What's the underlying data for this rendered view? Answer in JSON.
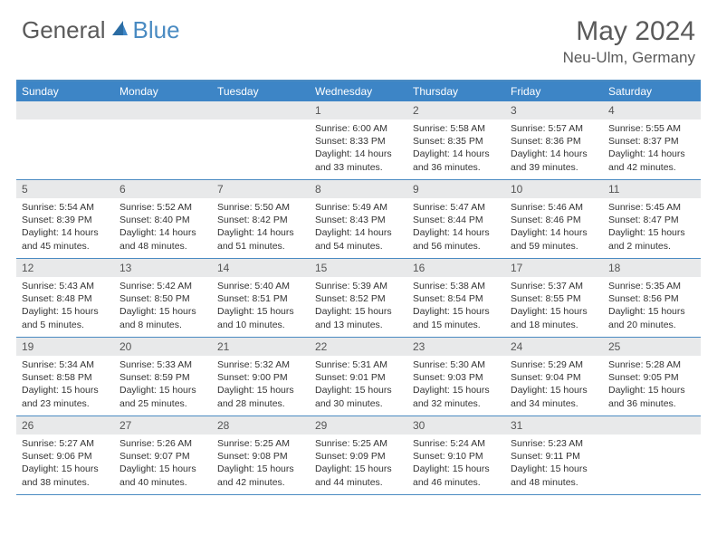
{
  "brand": {
    "general": "General",
    "blue": "Blue"
  },
  "title": "May 2024",
  "location": "Neu-Ulm, Germany",
  "colors": {
    "accent": "#3d85c6",
    "border": "#4a8bc2",
    "num_bg": "#e8e9ea",
    "text_gray": "#5a5a5a"
  },
  "dayNames": [
    "Sunday",
    "Monday",
    "Tuesday",
    "Wednesday",
    "Thursday",
    "Friday",
    "Saturday"
  ],
  "weeks": [
    [
      {
        "num": "",
        "lines": []
      },
      {
        "num": "",
        "lines": []
      },
      {
        "num": "",
        "lines": []
      },
      {
        "num": "1",
        "lines": [
          "Sunrise: 6:00 AM",
          "Sunset: 8:33 PM",
          "Daylight: 14 hours",
          "and 33 minutes."
        ]
      },
      {
        "num": "2",
        "lines": [
          "Sunrise: 5:58 AM",
          "Sunset: 8:35 PM",
          "Daylight: 14 hours",
          "and 36 minutes."
        ]
      },
      {
        "num": "3",
        "lines": [
          "Sunrise: 5:57 AM",
          "Sunset: 8:36 PM",
          "Daylight: 14 hours",
          "and 39 minutes."
        ]
      },
      {
        "num": "4",
        "lines": [
          "Sunrise: 5:55 AM",
          "Sunset: 8:37 PM",
          "Daylight: 14 hours",
          "and 42 minutes."
        ]
      }
    ],
    [
      {
        "num": "5",
        "lines": [
          "Sunrise: 5:54 AM",
          "Sunset: 8:39 PM",
          "Daylight: 14 hours",
          "and 45 minutes."
        ]
      },
      {
        "num": "6",
        "lines": [
          "Sunrise: 5:52 AM",
          "Sunset: 8:40 PM",
          "Daylight: 14 hours",
          "and 48 minutes."
        ]
      },
      {
        "num": "7",
        "lines": [
          "Sunrise: 5:50 AM",
          "Sunset: 8:42 PM",
          "Daylight: 14 hours",
          "and 51 minutes."
        ]
      },
      {
        "num": "8",
        "lines": [
          "Sunrise: 5:49 AM",
          "Sunset: 8:43 PM",
          "Daylight: 14 hours",
          "and 54 minutes."
        ]
      },
      {
        "num": "9",
        "lines": [
          "Sunrise: 5:47 AM",
          "Sunset: 8:44 PM",
          "Daylight: 14 hours",
          "and 56 minutes."
        ]
      },
      {
        "num": "10",
        "lines": [
          "Sunrise: 5:46 AM",
          "Sunset: 8:46 PM",
          "Daylight: 14 hours",
          "and 59 minutes."
        ]
      },
      {
        "num": "11",
        "lines": [
          "Sunrise: 5:45 AM",
          "Sunset: 8:47 PM",
          "Daylight: 15 hours",
          "and 2 minutes."
        ]
      }
    ],
    [
      {
        "num": "12",
        "lines": [
          "Sunrise: 5:43 AM",
          "Sunset: 8:48 PM",
          "Daylight: 15 hours",
          "and 5 minutes."
        ]
      },
      {
        "num": "13",
        "lines": [
          "Sunrise: 5:42 AM",
          "Sunset: 8:50 PM",
          "Daylight: 15 hours",
          "and 8 minutes."
        ]
      },
      {
        "num": "14",
        "lines": [
          "Sunrise: 5:40 AM",
          "Sunset: 8:51 PM",
          "Daylight: 15 hours",
          "and 10 minutes."
        ]
      },
      {
        "num": "15",
        "lines": [
          "Sunrise: 5:39 AM",
          "Sunset: 8:52 PM",
          "Daylight: 15 hours",
          "and 13 minutes."
        ]
      },
      {
        "num": "16",
        "lines": [
          "Sunrise: 5:38 AM",
          "Sunset: 8:54 PM",
          "Daylight: 15 hours",
          "and 15 minutes."
        ]
      },
      {
        "num": "17",
        "lines": [
          "Sunrise: 5:37 AM",
          "Sunset: 8:55 PM",
          "Daylight: 15 hours",
          "and 18 minutes."
        ]
      },
      {
        "num": "18",
        "lines": [
          "Sunrise: 5:35 AM",
          "Sunset: 8:56 PM",
          "Daylight: 15 hours",
          "and 20 minutes."
        ]
      }
    ],
    [
      {
        "num": "19",
        "lines": [
          "Sunrise: 5:34 AM",
          "Sunset: 8:58 PM",
          "Daylight: 15 hours",
          "and 23 minutes."
        ]
      },
      {
        "num": "20",
        "lines": [
          "Sunrise: 5:33 AM",
          "Sunset: 8:59 PM",
          "Daylight: 15 hours",
          "and 25 minutes."
        ]
      },
      {
        "num": "21",
        "lines": [
          "Sunrise: 5:32 AM",
          "Sunset: 9:00 PM",
          "Daylight: 15 hours",
          "and 28 minutes."
        ]
      },
      {
        "num": "22",
        "lines": [
          "Sunrise: 5:31 AM",
          "Sunset: 9:01 PM",
          "Daylight: 15 hours",
          "and 30 minutes."
        ]
      },
      {
        "num": "23",
        "lines": [
          "Sunrise: 5:30 AM",
          "Sunset: 9:03 PM",
          "Daylight: 15 hours",
          "and 32 minutes."
        ]
      },
      {
        "num": "24",
        "lines": [
          "Sunrise: 5:29 AM",
          "Sunset: 9:04 PM",
          "Daylight: 15 hours",
          "and 34 minutes."
        ]
      },
      {
        "num": "25",
        "lines": [
          "Sunrise: 5:28 AM",
          "Sunset: 9:05 PM",
          "Daylight: 15 hours",
          "and 36 minutes."
        ]
      }
    ],
    [
      {
        "num": "26",
        "lines": [
          "Sunrise: 5:27 AM",
          "Sunset: 9:06 PM",
          "Daylight: 15 hours",
          "and 38 minutes."
        ]
      },
      {
        "num": "27",
        "lines": [
          "Sunrise: 5:26 AM",
          "Sunset: 9:07 PM",
          "Daylight: 15 hours",
          "and 40 minutes."
        ]
      },
      {
        "num": "28",
        "lines": [
          "Sunrise: 5:25 AM",
          "Sunset: 9:08 PM",
          "Daylight: 15 hours",
          "and 42 minutes."
        ]
      },
      {
        "num": "29",
        "lines": [
          "Sunrise: 5:25 AM",
          "Sunset: 9:09 PM",
          "Daylight: 15 hours",
          "and 44 minutes."
        ]
      },
      {
        "num": "30",
        "lines": [
          "Sunrise: 5:24 AM",
          "Sunset: 9:10 PM",
          "Daylight: 15 hours",
          "and 46 minutes."
        ]
      },
      {
        "num": "31",
        "lines": [
          "Sunrise: 5:23 AM",
          "Sunset: 9:11 PM",
          "Daylight: 15 hours",
          "and 48 minutes."
        ]
      },
      {
        "num": "",
        "lines": []
      }
    ]
  ]
}
